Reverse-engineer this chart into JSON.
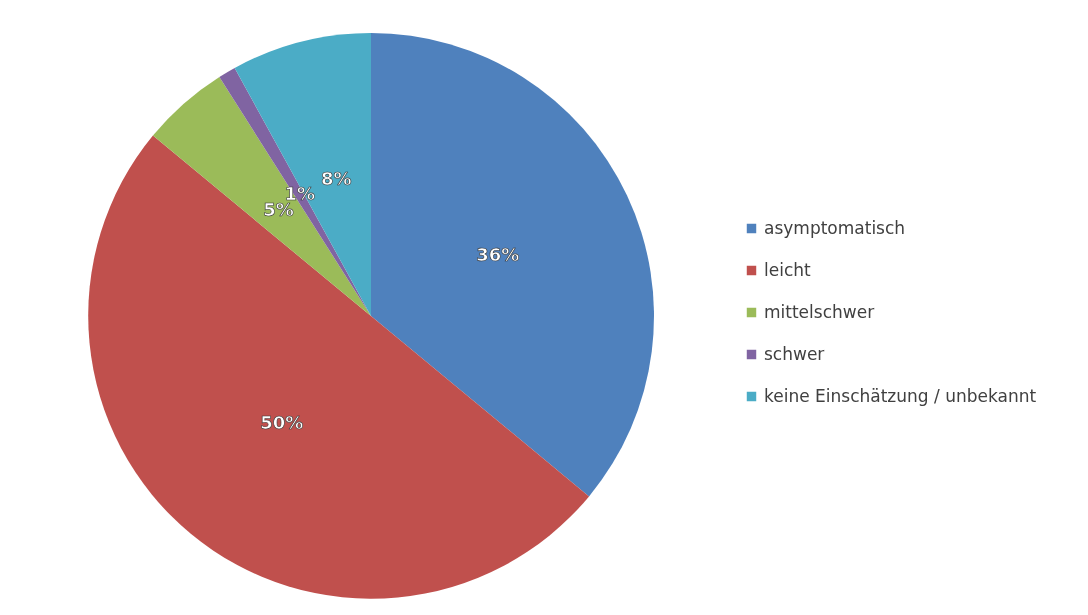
{
  "chart_data": {
    "type": "pie",
    "categories": [
      "asymptomatisch",
      "leicht",
      "mittelschwer",
      "schwer",
      "keine Einschätzung / unbekannt"
    ],
    "values": [
      36,
      50,
      5,
      1,
      8
    ],
    "colors": [
      "#4f81bd",
      "#c0504d",
      "#9bbb59",
      "#8064a2",
      "#4bacc6"
    ],
    "value_labels": [
      "36%",
      "50%",
      "5%",
      "1%",
      "8%"
    ],
    "legend": "right"
  }
}
